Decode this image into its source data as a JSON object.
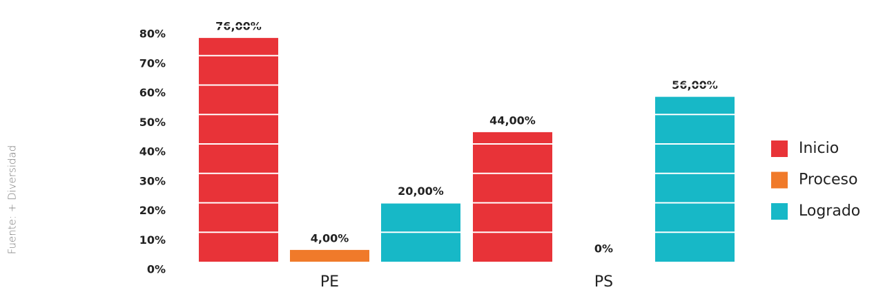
{
  "chart_data": {
    "type": "bar",
    "source": "Fuente: + Diversidad",
    "categories": [
      "PE",
      "PS"
    ],
    "series": [
      {
        "name": "Inicio",
        "color": "#e83338",
        "values": [
          76,
          44
        ],
        "value_labels": [
          "76,00%",
          "44,00%"
        ]
      },
      {
        "name": "Proceso",
        "color": "#f07a2a",
        "values": [
          4,
          0
        ],
        "value_labels": [
          "4,00%",
          "0%"
        ]
      },
      {
        "name": "Logrado",
        "color": "#17b8c7",
        "values": [
          20,
          56
        ],
        "value_labels": [
          "20,00%",
          "56,00%"
        ]
      }
    ],
    "ylim": [
      0,
      80
    ],
    "yticks": [
      {
        "value": 0,
        "label": "0%"
      },
      {
        "value": 10,
        "label": "10%"
      },
      {
        "value": 20,
        "label": "20%"
      },
      {
        "value": 30,
        "label": "30%"
      },
      {
        "value": 40,
        "label": "40%"
      },
      {
        "value": 50,
        "label": "50%"
      },
      {
        "value": 60,
        "label": "60%"
      },
      {
        "value": 70,
        "label": "70%"
      },
      {
        "value": 80,
        "label": "80%"
      }
    ],
    "grid": true,
    "legend": "right"
  }
}
